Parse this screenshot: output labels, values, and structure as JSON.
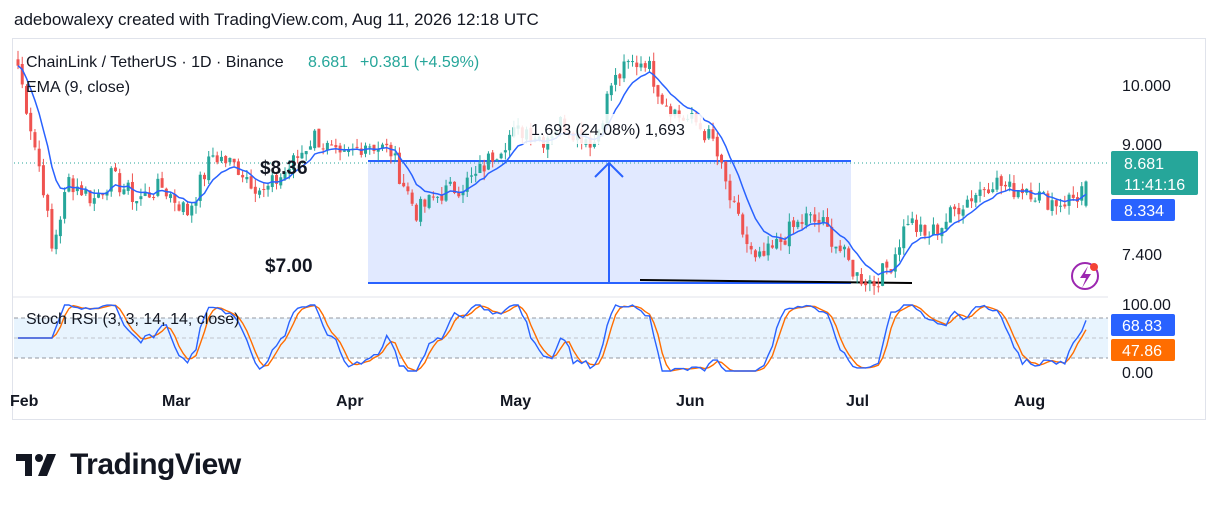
{
  "header": {
    "text": "adebowalexy created with TradingView.com, Aug 11, 2026 12:18 UTC"
  },
  "logo": {
    "text": "TradingView"
  },
  "chart_data": {
    "type": "candlestick",
    "symbol_line": {
      "name": "ChainLink / TetherUS · 1D · Binance",
      "price": "8.681",
      "change": "+0.381 (+4.59%)",
      "ema_label": "EMA (9, close)"
    },
    "price_axis": {
      "ticks": [
        "10.000",
        "9.000",
        "7.400"
      ],
      "ylim": [
        6.9,
        10.9
      ]
    },
    "price_badges": {
      "last": "8.681",
      "countdown": "11:41:16",
      "ema": "8.334",
      "last_color": "#26a69a",
      "ema_color": "#2962ff"
    },
    "measure": {
      "label": "1.693 (24.08%) 1,693",
      "from": 6.95,
      "to": 8.67
    },
    "annotations": {
      "upper": "$8.36",
      "lower": "$7.00"
    },
    "x_axis": {
      "labels": [
        "Feb",
        "Mar",
        "Apr",
        "May",
        "Jun",
        "Jul",
        "Aug"
      ]
    },
    "stoch_rsi": {
      "label": "Stoch RSI (3, 3, 14, 14, close)",
      "ticks": [
        "100.00",
        "0.00"
      ],
      "k_value": "68.83",
      "d_value": "47.86",
      "k_color": "#2962ff",
      "d_color": "#ff6d00"
    },
    "colors": {
      "up": "#26a69a",
      "down": "#ef5350",
      "ema": "#2962ff"
    },
    "close_path": [
      [
        0,
        10.5
      ],
      [
        6,
        8.6
      ],
      [
        8,
        7.6
      ],
      [
        12,
        8.7
      ],
      [
        18,
        8.4
      ],
      [
        22,
        8.75
      ],
      [
        28,
        8.4
      ],
      [
        34,
        8.6
      ],
      [
        40,
        8.2
      ],
      [
        46,
        9.1
      ],
      [
        52,
        8.9
      ],
      [
        58,
        8.5
      ],
      [
        64,
        8.9
      ],
      [
        70,
        9.4
      ],
      [
        76,
        9.0
      ],
      [
        82,
        9.3
      ],
      [
        88,
        9.15
      ],
      [
        90,
        8.8
      ],
      [
        94,
        8.2
      ],
      [
        100,
        8.5
      ],
      [
        104,
        8.6
      ],
      [
        108,
        8.75
      ],
      [
        112,
        9.1
      ],
      [
        116,
        9.4
      ],
      [
        120,
        9.5
      ],
      [
        124,
        9.35
      ],
      [
        128,
        9.6
      ],
      [
        132,
        9.45
      ],
      [
        136,
        9.3
      ],
      [
        140,
        10.2
      ],
      [
        144,
        10.5
      ],
      [
        148,
        10.6
      ],
      [
        152,
        10.0
      ],
      [
        156,
        9.7
      ],
      [
        160,
        9.6
      ],
      [
        164,
        9.3
      ],
      [
        168,
        8.4
      ],
      [
        172,
        7.7
      ],
      [
        174,
        7.4
      ],
      [
        178,
        7.6
      ],
      [
        182,
        7.9
      ],
      [
        186,
        8.1
      ],
      [
        190,
        8.0
      ],
      [
        194,
        7.6
      ],
      [
        198,
        7.2
      ],
      [
        202,
        7.1
      ],
      [
        206,
        7.4
      ],
      [
        210,
        8.1
      ],
      [
        214,
        7.8
      ],
      [
        218,
        8.0
      ],
      [
        222,
        8.3
      ],
      [
        226,
        8.5
      ],
      [
        230,
        8.7
      ],
      [
        234,
        8.55
      ],
      [
        238,
        8.6
      ],
      [
        242,
        8.4
      ],
      [
        246,
        8.35
      ],
      [
        250,
        8.45
      ],
      [
        252,
        8.68
      ]
    ]
  }
}
